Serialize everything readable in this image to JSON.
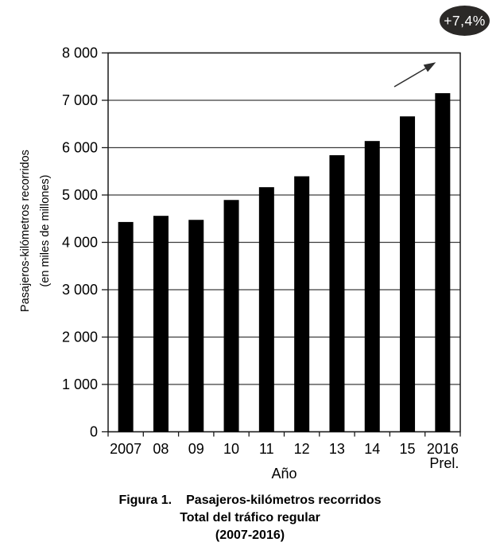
{
  "badge": {
    "text": "+7,4%",
    "background": "#2b2927",
    "color": "#ffffff"
  },
  "chart_data": {
    "type": "bar",
    "title": "Pasajeros-kilómetros recorridos — Total del tráfico regular (2007-2016)",
    "categories": [
      "2007",
      "08",
      "09",
      "10",
      "11",
      "12",
      "13",
      "14",
      "15",
      "2016"
    ],
    "last_category_sublabel": "Prel.",
    "values": [
      4430,
      4560,
      4475,
      4895,
      5165,
      5395,
      5840,
      6140,
      6660,
      7150
    ],
    "xlabel": "Año",
    "ylabel": "Pasajeros-kilómetros recorridos (en miles de millones)",
    "ylabel_line1": "Pasajeros-kilómetros recorridos",
    "ylabel_line2": "(en miles de millones)",
    "ylim": [
      0,
      8000
    ],
    "ytick_labels": [
      "0",
      "1 000",
      "2 000",
      "3 000",
      "4 000",
      "5 000",
      "6 000",
      "7 000",
      "8 000"
    ],
    "grid": "horizontal gridlines every 1000, full plot border box",
    "legend": "none",
    "bar_color": "#000000",
    "annotations": [
      {
        "type": "arrow",
        "description": "thin diagonal arrow pointing up-right toward the 2016 bar top"
      },
      {
        "type": "badge",
        "text": "+7,4%",
        "description": "dark ellipse badge at top right showing growth of latest year"
      }
    ]
  },
  "caption": {
    "line1_label": "Figura 1.",
    "line1_title": "Pasajeros-kilómetros recorridos",
    "line2": "Total del tráfico regular",
    "line3": "(2007-2016)"
  }
}
